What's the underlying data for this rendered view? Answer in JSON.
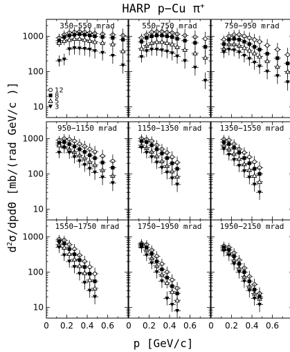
{
  "title": {
    "main": "HARP p−Cu π",
    "superscript": "+"
  },
  "axes": {
    "xlabel": "p [GeV/c]",
    "ylabel_prefix": "d",
    "ylabel_sup": "2",
    "ylabel_rest": "σ/dpdΘ [mb/(rad GeV/c )]"
  },
  "legend": {
    "placement": "bottom-left of first panel",
    "entries": [
      {
        "symbol": "circle-open",
        "label": "12"
      },
      {
        "symbol": "square-filled",
        "label": "8"
      },
      {
        "symbol": "triangle-open",
        "label": "5"
      },
      {
        "symbol": "triangle-down-filled",
        "label": "3"
      }
    ]
  },
  "chart_data": {
    "type": "scatter",
    "layout": "3x3 grid of panels, shared axes",
    "xlim": [
      0,
      0.8
    ],
    "ylim": [
      5,
      3000
    ],
    "yscale": "log",
    "xticks": [
      "0",
      "0.2",
      "0.4",
      "0.6"
    ],
    "yticks": [
      "10",
      "100",
      "1000"
    ],
    "grid": false,
    "panels": [
      {
        "label": "350–550 mrad",
        "series": [
          {
            "name": "12",
            "x": [
              0.125,
              0.175,
              0.225,
              0.275,
              0.325,
              0.375,
              0.425,
              0.475,
              0.55,
              0.65,
              0.75
            ],
            "y": [
              900,
              1100,
              1250,
              1300,
              1350,
              1300,
              1250,
              1200,
              1150,
              1100,
              1050
            ]
          },
          {
            "name": "8",
            "x": [
              0.125,
              0.175,
              0.225,
              0.275,
              0.325,
              0.375,
              0.425,
              0.475,
              0.55,
              0.65,
              0.75
            ],
            "y": [
              750,
              950,
              1050,
              1100,
              1150,
              1100,
              1050,
              1000,
              950,
              900,
              800
            ]
          },
          {
            "name": "5",
            "x": [
              0.125,
              0.175,
              0.225,
              0.275,
              0.325,
              0.375,
              0.425,
              0.475,
              0.55,
              0.65,
              0.75
            ],
            "y": [
              650,
              750,
              800,
              850,
              850,
              800,
              750,
              700,
              650,
              600,
              380
            ]
          },
          {
            "name": "3",
            "x": [
              0.125,
              0.175,
              0.225,
              0.275,
              0.325,
              0.375,
              0.425,
              0.475,
              0.55,
              0.65,
              0.75
            ],
            "y": [
              200,
              220,
              430,
              460,
              450,
              440,
              420,
              380,
              340,
              280,
              150
            ]
          }
        ]
      },
      {
        "label": "550–750 mrad",
        "series": [
          {
            "name": "12",
            "x": [
              0.125,
              0.175,
              0.225,
              0.275,
              0.325,
              0.375,
              0.425,
              0.475,
              0.55,
              0.65,
              0.75
            ],
            "y": [
              900,
              1100,
              1300,
              1350,
              1350,
              1300,
              1250,
              1150,
              1050,
              950,
              850
            ]
          },
          {
            "name": "8",
            "x": [
              0.125,
              0.175,
              0.225,
              0.275,
              0.325,
              0.375,
              0.425,
              0.475,
              0.55,
              0.65,
              0.75
            ],
            "y": [
              700,
              900,
              1000,
              1050,
              1050,
              1000,
              950,
              850,
              750,
              650,
              500
            ]
          },
          {
            "name": "5",
            "x": [
              0.125,
              0.175,
              0.225,
              0.275,
              0.325,
              0.375,
              0.425,
              0.475,
              0.55,
              0.65,
              0.75
            ],
            "y": [
              450,
              550,
              650,
              700,
              700,
              650,
              600,
              500,
              420,
              330,
              250
            ]
          },
          {
            "name": "3",
            "x": [
              0.125,
              0.175,
              0.225,
              0.275,
              0.325,
              0.375,
              0.425,
              0.475,
              0.55,
              0.65,
              0.75
            ],
            "y": [
              260,
              380,
              420,
              420,
              400,
              370,
              330,
              270,
              200,
              130,
              55
            ]
          }
        ]
      },
      {
        "label": "750–950 mrad",
        "series": [
          {
            "name": "12",
            "x": [
              0.125,
              0.175,
              0.225,
              0.275,
              0.325,
              0.375,
              0.425,
              0.475,
              0.55,
              0.65,
              0.75
            ],
            "y": [
              800,
              1000,
              1100,
              1100,
              1000,
              900,
              800,
              700,
              550,
              420,
              300
            ]
          },
          {
            "name": "8",
            "x": [
              0.125,
              0.175,
              0.225,
              0.275,
              0.325,
              0.375,
              0.425,
              0.475,
              0.55,
              0.65,
              0.75
            ],
            "y": [
              600,
              800,
              850,
              800,
              700,
              600,
              500,
              420,
              320,
              240,
              170
            ]
          },
          {
            "name": "5",
            "x": [
              0.125,
              0.175,
              0.225,
              0.275,
              0.325,
              0.375,
              0.425,
              0.475,
              0.55,
              0.65,
              0.75
            ],
            "y": [
              450,
              600,
              600,
              550,
              480,
              400,
              330,
              270,
              200,
              140,
              100
            ]
          },
          {
            "name": "3",
            "x": [
              0.125,
              0.175,
              0.225,
              0.275,
              0.325,
              0.375,
              0.425,
              0.475,
              0.55,
              0.65,
              0.75
            ],
            "y": [
              350,
              420,
              400,
              350,
              280,
              230,
              180,
              140,
              100,
              75,
              50
            ]
          }
        ]
      },
      {
        "label": "950–1150 mrad",
        "series": [
          {
            "name": "12",
            "x": [
              0.125,
              0.175,
              0.225,
              0.275,
              0.325,
              0.375,
              0.425,
              0.475,
              0.55,
              0.65
            ],
            "y": [
              900,
              1000,
              950,
              850,
              700,
              600,
              500,
              420,
              320,
              230
            ]
          },
          {
            "name": "8",
            "x": [
              0.125,
              0.175,
              0.225,
              0.275,
              0.325,
              0.375,
              0.425,
              0.475,
              0.55,
              0.65
            ],
            "y": [
              750,
              800,
              700,
              600,
              500,
              420,
              340,
              280,
              210,
              150
            ]
          },
          {
            "name": "5",
            "x": [
              0.125,
              0.175,
              0.225,
              0.275,
              0.325,
              0.375,
              0.425,
              0.475,
              0.55,
              0.65
            ],
            "y": [
              650,
              600,
              500,
              420,
              340,
              280,
              220,
              180,
              130,
              90
            ]
          },
          {
            "name": "3",
            "x": [
              0.125,
              0.175,
              0.225,
              0.275,
              0.325,
              0.375,
              0.425,
              0.475,
              0.55,
              0.65
            ],
            "y": [
              400,
              550,
              400,
              300,
              230,
              180,
              140,
              110,
              80,
              55
            ]
          }
        ]
      },
      {
        "label": "1150–1350 mrad",
        "series": [
          {
            "name": "12",
            "x": [
              0.125,
              0.175,
              0.225,
              0.275,
              0.325,
              0.375,
              0.425,
              0.475
            ],
            "y": [
              1000,
              950,
              850,
              650,
              500,
              400,
              300,
              210
            ]
          },
          {
            "name": "8",
            "x": [
              0.125,
              0.175,
              0.225,
              0.275,
              0.325,
              0.375,
              0.425,
              0.475
            ],
            "y": [
              850,
              800,
              650,
              500,
              380,
              280,
              200,
              140
            ]
          },
          {
            "name": "5",
            "x": [
              0.125,
              0.175,
              0.225,
              0.275,
              0.325,
              0.375,
              0.425,
              0.475
            ],
            "y": [
              650,
              550,
              430,
              320,
              230,
              170,
              120,
              85
            ]
          },
          {
            "name": "3",
            "x": [
              0.125,
              0.175,
              0.225,
              0.275,
              0.325,
              0.375,
              0.425,
              0.475
            ],
            "y": [
              550,
              400,
              300,
              210,
              150,
              110,
              75,
              50
            ]
          }
        ]
      },
      {
        "label": "1350–1550 mrad",
        "series": [
          {
            "name": "12",
            "x": [
              0.125,
              0.175,
              0.225,
              0.275,
              0.325,
              0.375,
              0.425,
              0.475
            ],
            "y": [
              950,
              900,
              700,
              500,
              400,
              300,
              220,
              150
            ]
          },
          {
            "name": "8",
            "x": [
              0.125,
              0.175,
              0.225,
              0.275,
              0.325,
              0.375,
              0.425,
              0.475
            ],
            "y": [
              800,
              700,
              550,
              400,
              280,
              200,
              140,
              100
            ]
          },
          {
            "name": "5",
            "x": [
              0.125,
              0.175,
              0.225,
              0.275,
              0.325,
              0.375,
              0.425,
              0.475
            ],
            "y": [
              650,
              500,
              370,
              270,
              190,
              130,
              90,
              60
            ]
          },
          {
            "name": "3",
            "x": [
              0.125,
              0.175,
              0.225,
              0.275,
              0.325,
              0.375,
              0.425,
              0.475
            ],
            "y": [
              500,
              350,
              250,
              170,
              120,
              80,
              50,
              30
            ]
          }
        ]
      },
      {
        "label": "1550–1750 mrad",
        "series": [
          {
            "name": "12",
            "x": [
              0.125,
              0.175,
              0.225,
              0.275,
              0.325,
              0.375,
              0.425,
              0.475
            ],
            "y": [
              850,
              800,
              600,
              450,
              300,
              200,
              140,
              90
            ]
          },
          {
            "name": "8",
            "x": [
              0.125,
              0.175,
              0.225,
              0.275,
              0.325,
              0.375,
              0.425,
              0.475
            ],
            "y": [
              750,
              650,
              450,
              320,
              220,
              140,
              90,
              55
            ]
          },
          {
            "name": "5",
            "x": [
              0.125,
              0.175,
              0.225,
              0.275,
              0.325,
              0.375,
              0.425,
              0.475
            ],
            "y": [
              600,
              500,
              330,
              230,
              150,
              95,
              60,
              35
            ]
          },
          {
            "name": "3",
            "x": [
              0.125,
              0.175,
              0.225,
              0.275,
              0.325,
              0.375,
              0.425,
              0.475
            ],
            "y": [
              500,
              300,
              200,
              140,
              90,
              50,
              30,
              20
            ]
          }
        ]
      },
      {
        "label": "1750–1950 mrad",
        "series": [
          {
            "name": "12",
            "x": [
              0.125,
              0.175,
              0.225,
              0.275,
              0.325,
              0.375,
              0.425,
              0.475
            ],
            "y": [
              650,
              600,
              420,
              280,
              170,
              100,
              60,
              35
            ]
          },
          {
            "name": "8",
            "x": [
              0.125,
              0.175,
              0.225,
              0.275,
              0.325,
              0.375,
              0.425,
              0.475
            ],
            "y": [
              600,
              500,
              330,
              200,
              120,
              70,
              40,
              25
            ]
          },
          {
            "name": "5",
            "x": [
              0.125,
              0.175,
              0.225,
              0.275,
              0.325,
              0.375,
              0.425,
              0.475
            ],
            "y": [
              550,
              420,
              250,
              150,
              85,
              50,
              28,
              16
            ]
          },
          {
            "name": "3",
            "x": [
              0.125,
              0.175,
              0.225,
              0.275,
              0.325,
              0.375,
              0.425,
              0.475
            ],
            "y": [
              500,
              300,
              180,
              100,
              55,
              18,
              12,
              8
            ]
          }
        ]
      },
      {
        "label": "1950–2150 mrad",
        "series": [
          {
            "name": "12",
            "x": [
              0.125,
              0.175,
              0.225,
              0.275,
              0.325,
              0.375,
              0.425,
              0.475
            ],
            "y": [
              550,
              500,
              350,
              220,
              130,
              75,
              45,
              25
            ]
          },
          {
            "name": "8",
            "x": [
              0.125,
              0.175,
              0.225,
              0.275,
              0.325,
              0.375,
              0.425,
              0.475
            ],
            "y": [
              500,
              430,
              280,
              170,
              100,
              55,
              32,
              20
            ]
          },
          {
            "name": "5",
            "x": [
              0.125,
              0.175,
              0.225,
              0.275,
              0.325,
              0.375,
              0.425,
              0.475
            ],
            "y": [
              450,
              350,
              220,
              130,
              75,
              40,
              25,
              18
            ]
          },
          {
            "name": "3",
            "x": [
              0.125,
              0.175,
              0.225,
              0.275,
              0.325,
              0.375,
              0.425,
              0.475
            ],
            "y": [
              400,
              300,
              170,
              100,
              55,
              30,
              18,
              12
            ]
          }
        ]
      }
    ]
  }
}
